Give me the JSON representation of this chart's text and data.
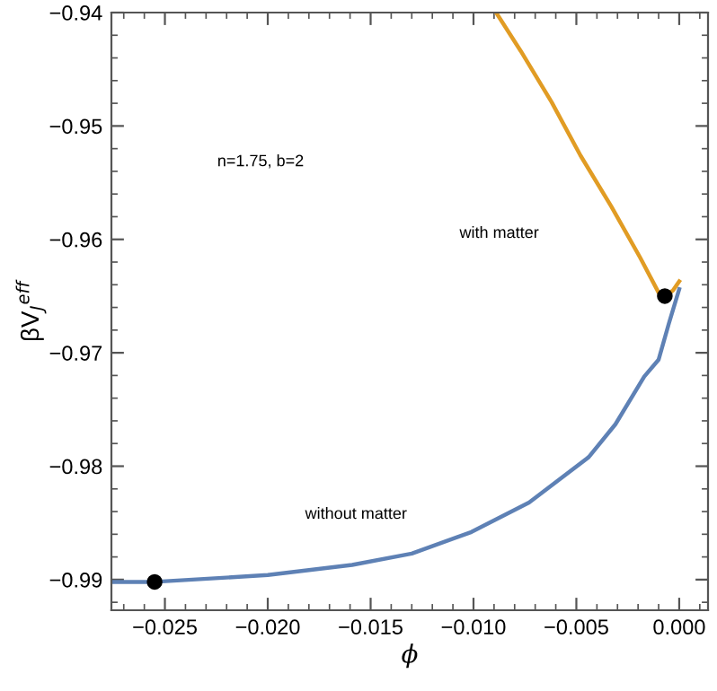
{
  "chart_data": {
    "type": "line",
    "xlabel": "ϕ",
    "ylabel": "βV$_{J}$$^{eff}$",
    "xlim": [
      -0.0276,
      0.0014
    ],
    "ylim": [
      -0.9927,
      -0.94
    ],
    "xticks": [
      {
        "value": -0.025,
        "label": "−0.025"
      },
      {
        "value": -0.02,
        "label": "−0.020"
      },
      {
        "value": -0.015,
        "label": "−0.015"
      },
      {
        "value": -0.01,
        "label": "−0.010"
      },
      {
        "value": -0.005,
        "label": "−0.005"
      },
      {
        "value": 0.0,
        "label": "0.000"
      }
    ],
    "yticks": [
      {
        "value": -0.99,
        "label": "−0.99"
      },
      {
        "value": -0.98,
        "label": "−0.98"
      },
      {
        "value": -0.97,
        "label": "−0.97"
      },
      {
        "value": -0.96,
        "label": "−0.96"
      },
      {
        "value": -0.95,
        "label": "−0.95"
      },
      {
        "value": -0.94,
        "label": "−0.94"
      }
    ],
    "grid": false,
    "legend": false,
    "series": [
      {
        "color": "#5e81b5",
        "x": [
          -0.0276,
          -0.0255,
          -0.02,
          -0.0159,
          -0.013,
          -0.0101,
          -0.0073,
          -0.0044,
          -0.0031,
          -0.0017,
          -0.001,
          -0.0005,
          0.0
        ],
        "values": [
          -0.9902,
          -0.9902,
          -0.9896,
          -0.9887,
          -0.9877,
          -0.9858,
          -0.9832,
          -0.9792,
          -0.9763,
          -0.9721,
          -0.9706,
          -0.9674,
          -0.9644
        ]
      },
      {
        "color": "#e19c24",
        "x": [
          -0.0089,
          -0.0077,
          -0.0062,
          -0.0048,
          -0.0033,
          -0.0019,
          -0.001,
          -0.0007,
          -0.0003,
          0.0
        ],
        "values": [
          -0.94,
          -0.9434,
          -0.9479,
          -0.9526,
          -0.9571,
          -0.9616,
          -0.9647,
          -0.965,
          -0.9645,
          -0.9637
        ]
      },
      {
        "type": "scatter",
        "color": "#000000",
        "marker": "circle",
        "x": [
          -0.0255,
          -0.0007
        ],
        "values": [
          -0.9902,
          -0.965
        ]
      }
    ],
    "annotations": [
      "n=1.75, b=2",
      "with matter",
      "without matter"
    ]
  }
}
